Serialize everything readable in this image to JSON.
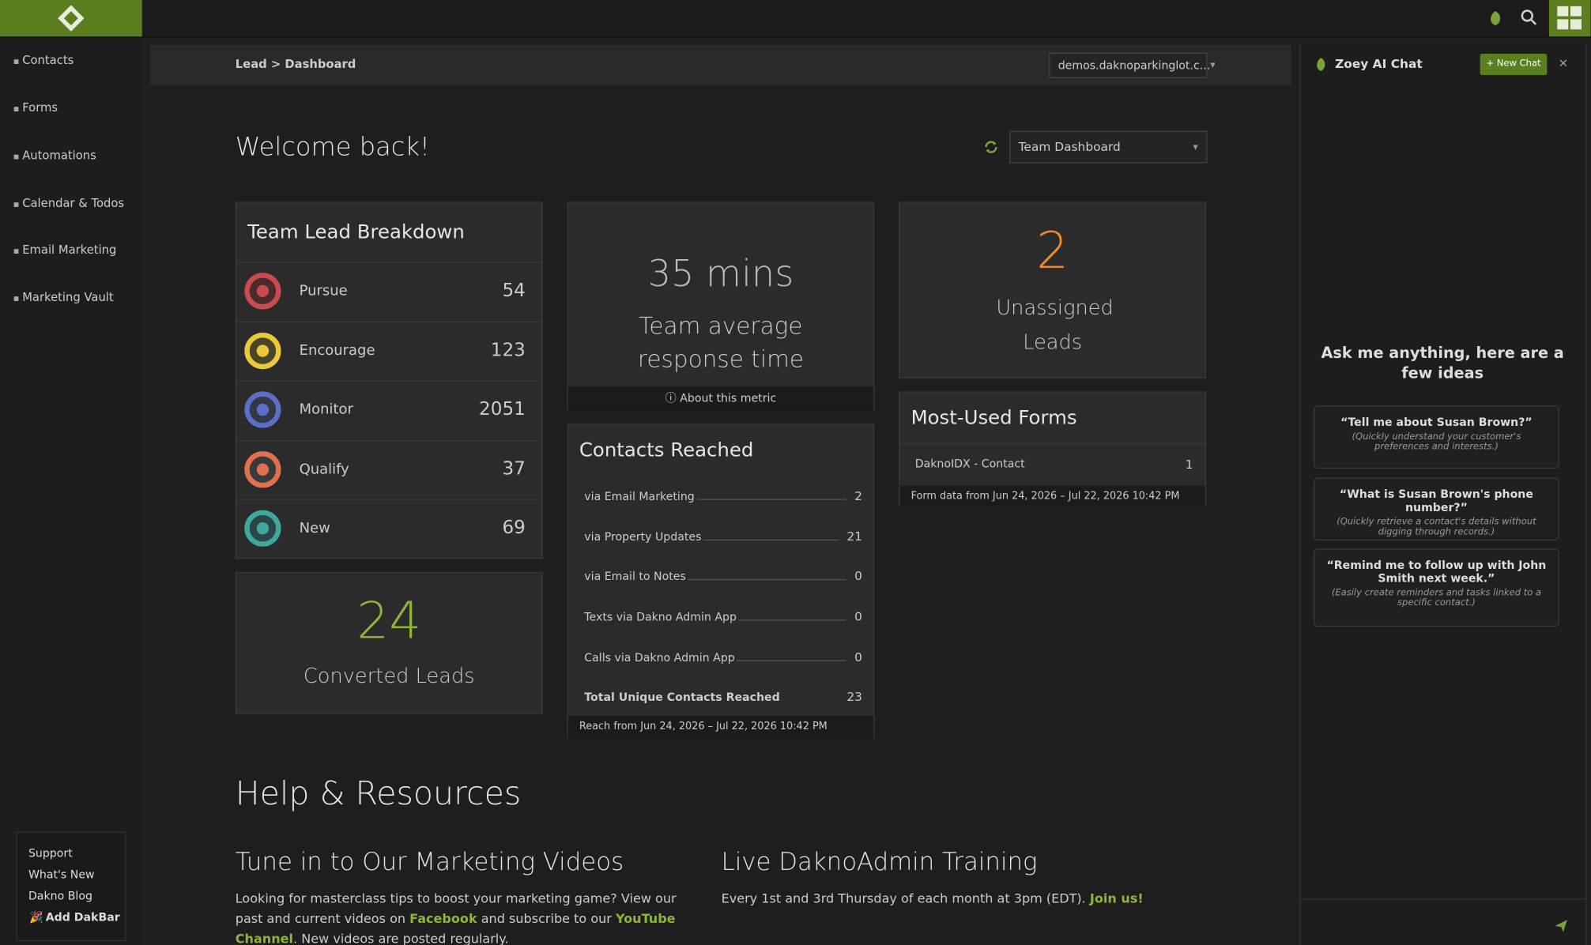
{
  "sidebar": {
    "nav": [
      "Contacts",
      "Forms",
      "Automations",
      "Calendar & Todos",
      "Email Marketing",
      "Marketing Vault"
    ],
    "footer_links": [
      "Support",
      "What's New",
      "Dakno Blog",
      "Add DakBar"
    ]
  },
  "topbar": {
    "breadcrumb": "Lead > Dashboard",
    "site_select": "demos.daknoparkinglot.c..."
  },
  "welcome": {
    "title": "Welcome back!",
    "dashboard_select": "Team Dashboard"
  },
  "lead_breakdown": {
    "title": "Team Lead Breakdown",
    "rows": [
      {
        "label": "Pursue",
        "count": 54
      },
      {
        "label": "Encourage",
        "count": 123
      },
      {
        "label": "Monitor",
        "count": 2051
      },
      {
        "label": "Qualify",
        "count": 37
      },
      {
        "label": "New",
        "count": 69
      }
    ]
  },
  "response": {
    "value": "35 mins",
    "label": "Team average response time",
    "link": "About this metric"
  },
  "unassigned": {
    "value": 2,
    "label": "Unassigned Leads"
  },
  "converted": {
    "value": 24,
    "label": "Converted Leads"
  },
  "contacts_reached": {
    "title": "Contacts Reached",
    "rows": [
      {
        "label": "via Email Marketing",
        "count": 2
      },
      {
        "label": "via Property Updates",
        "count": 21
      },
      {
        "label": "via Email to Notes",
        "count": 0
      },
      {
        "label": "Texts via Dakno Admin App",
        "count": 0
      },
      {
        "label": "Calls via Dakno Admin App",
        "count": 0
      }
    ],
    "total": {
      "label": "Total Unique Contacts Reached",
      "count": 23
    },
    "footer": "Reach from Jun 24, 2026 – Jul 22, 2026 10:42 PM"
  },
  "most_used_forms": {
    "title": "Most-Used Forms",
    "rows": [
      {
        "name": "DaknoIDX - Contact",
        "count": 1
      }
    ],
    "footer": "Form data from Jun 24, 2026 – Jul 22, 2026 10:42 PM"
  },
  "help": {
    "title": "Help & Resources",
    "sections": [
      {
        "title": "Tune in to Our Marketing Videos",
        "text": [
          "Looking for masterclass tips to boost your marketing game? View our past and current videos on ",
          "Facebook",
          " and subscribe to our ",
          "YouTube Channel",
          ". New videos are posted regularly."
        ]
      },
      {
        "title": "Live DaknoAdmin Training",
        "text": [
          "Every 1st and 3rd Thursday of each month at 3pm (EDT). ",
          "Join us!"
        ]
      }
    ]
  },
  "chat": {
    "title": "Zoey AI Chat",
    "new_chat": "New Chat",
    "prompt": "Ask me anything, here are a few ideas",
    "suggestions": [
      {
        "question": "“Tell me about Susan Brown?”",
        "hint": "(Quickly understand your customer's preferences and interests.)"
      },
      {
        "question": "“What is Susan Brown's phone number?”",
        "hint": "(Quickly retrieve a contact's details without digging through records.)"
      },
      {
        "question": "“Remind me to follow up with John Smith next week.”",
        "hint": "(Easily create reminders and tasks linked to a specific contact.)"
      }
    ]
  }
}
